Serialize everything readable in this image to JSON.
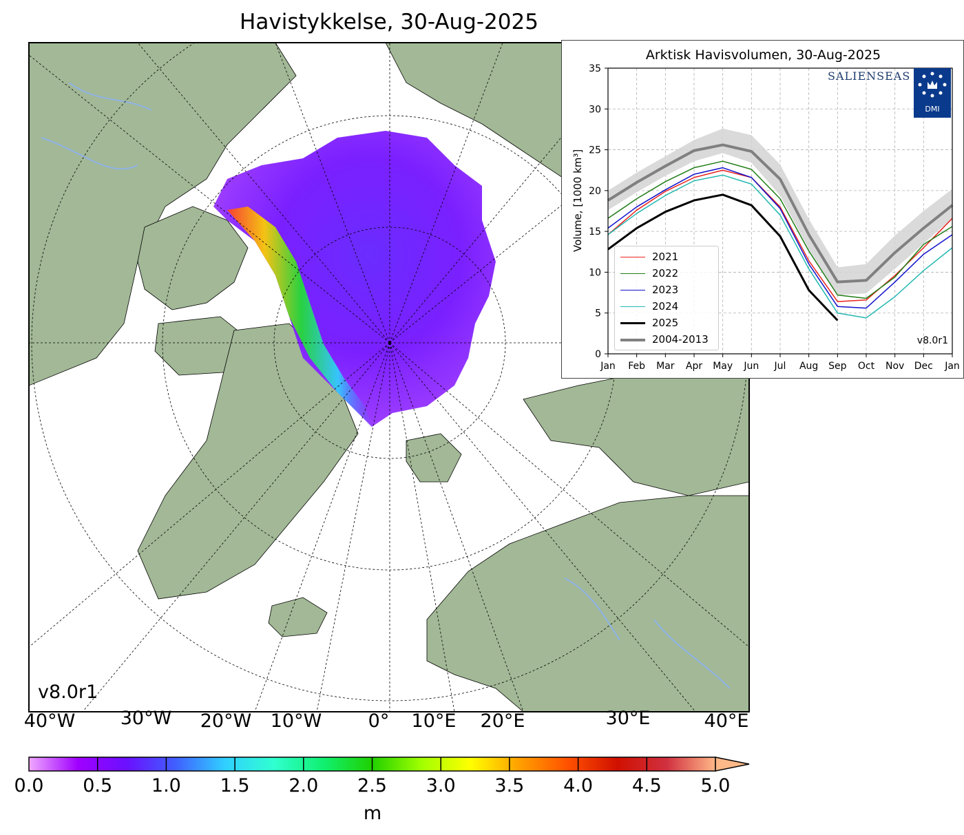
{
  "main_title": "Havistykkelse, 30-Aug-2025",
  "map": {
    "version": "v8.0r1",
    "lon_labels": [
      "40°W",
      "30°W",
      "20°W",
      "10°W",
      "0°",
      "10°E",
      "20°E",
      "30°E",
      "40°E"
    ],
    "colors": {
      "land": "#a2b896",
      "ocean": "#ffffff",
      "rivers": "#8fb3e6"
    },
    "colorbar": {
      "ticks": [
        "0.0",
        "0.5",
        "1.0",
        "1.5",
        "2.0",
        "2.5",
        "3.0",
        "3.5",
        "4.0",
        "4.5",
        "5.0"
      ],
      "unit": "m",
      "stops": [
        "#f0a8ff",
        "#a000ff",
        "#6a10ff",
        "#4060ff",
        "#30d0ff",
        "#30ffd0",
        "#10f070",
        "#20d000",
        "#a0ff00",
        "#ffff00",
        "#ffa000",
        "#ff5000",
        "#d01000",
        "#d03040",
        "#ffb888"
      ]
    }
  },
  "chart_data": {
    "type": "line",
    "title": "Arktisk Havisvolumen, 30-Aug-2025",
    "ylabel": "Volume, [1000 km³]",
    "ylim": [
      0,
      35
    ],
    "yticks": [
      "0",
      "5",
      "10",
      "15",
      "20",
      "25",
      "30",
      "35"
    ],
    "xticks": [
      "Jan",
      "Feb",
      "Mar",
      "Apr",
      "May",
      "Jun",
      "Jul",
      "Aug",
      "Sep",
      "Oct",
      "Nov",
      "Dec",
      "Jan"
    ],
    "x_months": [
      0,
      1,
      2,
      3,
      4,
      5,
      6,
      7,
      8,
      9,
      10,
      11,
      12
    ],
    "grid": true,
    "legend_position": "lower-left",
    "version": "v8.0r1",
    "logo": {
      "text": "SALIENSEAS",
      "dmi": "DMI"
    },
    "band": {
      "name": "2004-2013",
      "upper": [
        20.0,
        22.2,
        24.2,
        26.2,
        27.6,
        26.8,
        23.2,
        16.5,
        10.6,
        11.0,
        14.5,
        17.5,
        20.2
      ],
      "lower": [
        17.6,
        19.8,
        21.8,
        23.6,
        24.6,
        23.4,
        19.4,
        12.8,
        7.2,
        7.4,
        10.4,
        13.5,
        16.6
      ]
    },
    "series": [
      {
        "name": "2021",
        "color": "#e8221d",
        "width": 1.5,
        "values": [
          14.6,
          17.6,
          19.9,
          21.6,
          22.5,
          21.6,
          18.0,
          11.4,
          6.4,
          6.6,
          9.6,
          13.0,
          16.6
        ]
      },
      {
        "name": "2022",
        "color": "#1f7d16",
        "width": 1.5,
        "values": [
          16.6,
          19.0,
          21.1,
          22.8,
          23.6,
          22.6,
          19.0,
          12.6,
          7.2,
          6.8,
          9.4,
          13.4,
          15.6
        ]
      },
      {
        "name": "2023",
        "color": "#1111cc",
        "width": 1.5,
        "values": [
          15.4,
          18.0,
          20.1,
          22.0,
          22.8,
          21.6,
          17.8,
          11.0,
          5.8,
          5.6,
          8.8,
          12.2,
          14.6
        ]
      },
      {
        "name": "2024",
        "color": "#22b8b0",
        "width": 1.5,
        "values": [
          14.6,
          17.2,
          19.4,
          21.2,
          21.9,
          20.8,
          17.0,
          10.4,
          5.0,
          4.4,
          7.0,
          10.2,
          13.0
        ]
      },
      {
        "name": "2025",
        "color": "#000000",
        "width": 3,
        "values": [
          12.8,
          15.4,
          17.4,
          18.8,
          19.5,
          18.2,
          14.4,
          7.8,
          4.1,
          null,
          null,
          null,
          null
        ]
      },
      {
        "name": "2004-2013",
        "color": "#808080",
        "width": 4,
        "values": [
          18.8,
          21.0,
          23.0,
          24.9,
          25.6,
          24.8,
          21.4,
          14.6,
          8.8,
          9.0,
          12.4,
          15.4,
          18.2
        ]
      }
    ]
  }
}
